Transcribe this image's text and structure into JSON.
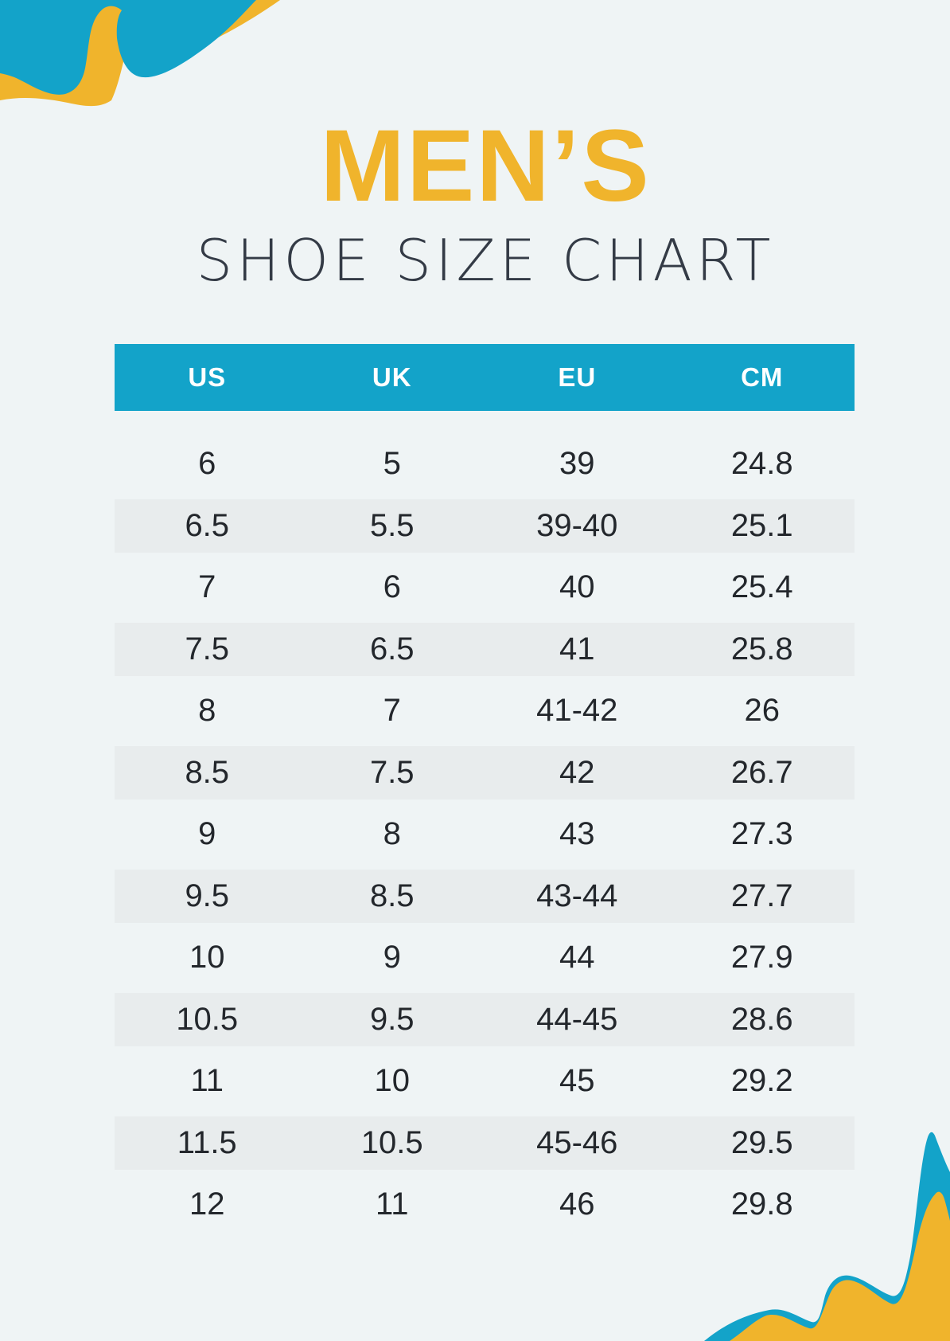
{
  "colors": {
    "background": "#EFF4F5",
    "accent_blue": "#13A3C9",
    "accent_yellow": "#F0B42C",
    "title_dark": "#343B46",
    "row_stripe": "#E8ECED",
    "cell_text": "#23272C",
    "header_text": "#FFFFFF"
  },
  "title": {
    "line1": "MEN’S",
    "line2": "SHOE SIZE CHART"
  },
  "table": {
    "columns": [
      "US",
      "UK",
      "EU",
      "CM"
    ],
    "rows": [
      [
        "6",
        "5",
        "39",
        "24.8"
      ],
      [
        "6.5",
        "5.5",
        "39-40",
        "25.1"
      ],
      [
        "7",
        "6",
        "40",
        "25.4"
      ],
      [
        "7.5",
        "6.5",
        "41",
        "25.8"
      ],
      [
        "8",
        "7",
        "41-42",
        "26"
      ],
      [
        "8.5",
        "7.5",
        "42",
        "26.7"
      ],
      [
        "9",
        "8",
        "43",
        "27.3"
      ],
      [
        "9.5",
        "8.5",
        "43-44",
        "27.7"
      ],
      [
        "10",
        "9",
        "44",
        "27.9"
      ],
      [
        "10.5",
        "9.5",
        "44-45",
        "28.6"
      ],
      [
        "11",
        "10",
        "45",
        "29.2"
      ],
      [
        "11.5",
        "10.5",
        "45-46",
        "29.5"
      ],
      [
        "12",
        "11",
        "46",
        "29.8"
      ]
    ]
  },
  "decorations": {
    "top_left": "blue-yellow-wave",
    "bottom_right": "blue-yellow-wave"
  }
}
